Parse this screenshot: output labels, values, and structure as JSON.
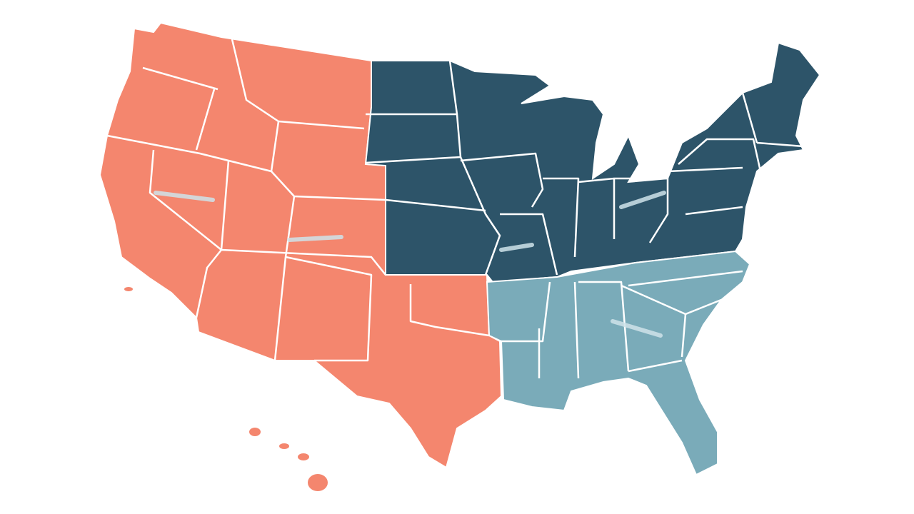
{
  "regions": [
    {
      "color": "#f4866e"
    },
    {
      "color": "#2d5469"
    },
    {
      "color": "#7aabb9"
    }
  ]
}
